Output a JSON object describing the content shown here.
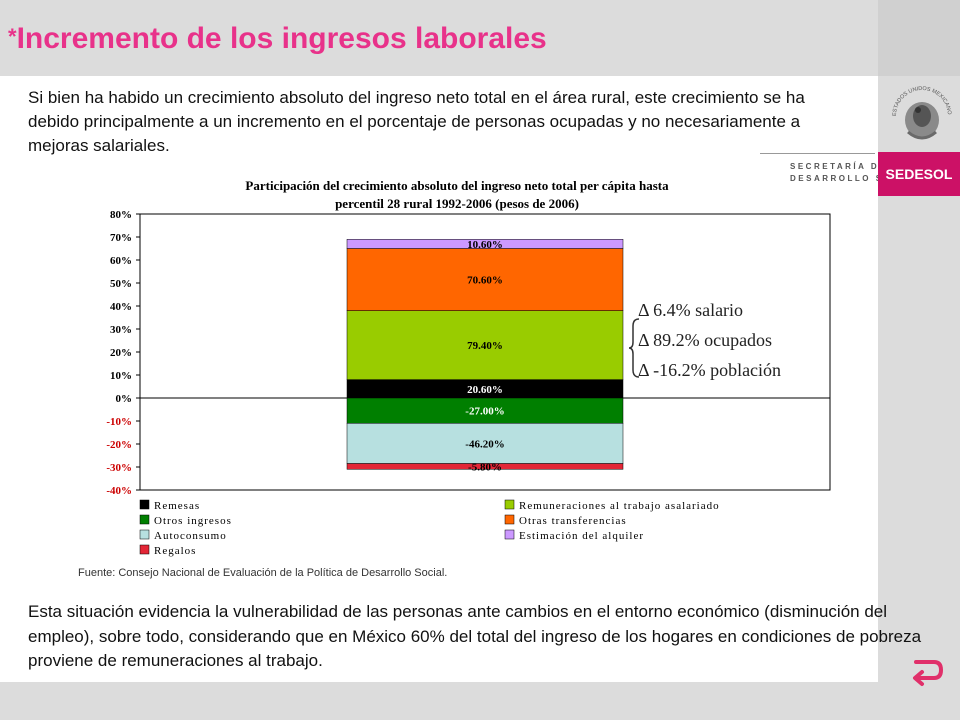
{
  "page": {
    "title_mark": "*",
    "title": "Incremento de los ingresos laborales",
    "intro": "Si bien ha habido un crecimiento absoluto del ingreso neto total en el área rural, este crecimiento se ha debido principalmente a un incremento en el porcentaje de personas ocupadas y no necesariamente a mejoras salariales.",
    "source": "Fuente: Consejo Nacional de Evaluación de la Política de Desarrollo Social.",
    "conclusion": "Esta situación evidencia la vulnerabilidad de las personas ante cambios en el entorno económico (disminución del empleo), sobre todo, considerando que en México 60% del total del ingreso de los hogares en condiciones de pobreza proviene de remuneraciones al trabajo."
  },
  "logo": {
    "secretaria_line1": "SECRETARÍA DE",
    "secretaria_line2": "DESARROLLO SOCIAL",
    "brand": "SEDESOL",
    "brand_color": "#cc1166",
    "emblem_text": "ESTADOS UNIDOS MEXICANOS"
  },
  "deltas": [
    "Δ 6.4% salario",
    "Δ 89.2% ocupados",
    "Δ -16.2% población"
  ],
  "colors": {
    "title": "#e8328a",
    "negative_tick": "#cc0000",
    "return_icon": "#e0306a"
  },
  "chart_data": {
    "type": "bar",
    "stacked": true,
    "title_line1": "Participación del crecimiento absoluto del ingreso neto total per cápita hasta",
    "title_line2": "percentil 28 rural 1992-2006 (pesos de 2006)",
    "ylim": [
      -40,
      80
    ],
    "yticks": [
      "80%",
      "70%",
      "60%",
      "50%",
      "40%",
      "30%",
      "20%",
      "10%",
      "0%",
      "-10%",
      "-20%",
      "-30%",
      "-40%"
    ],
    "segments": [
      {
        "name": "Remesas",
        "label": "20.60%",
        "value": 20.6,
        "height_pct": 8,
        "color": "#000000",
        "label_color": "#ffffff"
      },
      {
        "name": "Remuneraciones al trabajo asalariado",
        "label": "79.40%",
        "value": 79.4,
        "height_pct": 30,
        "color": "#99cc00",
        "label_color": "#000000"
      },
      {
        "name": "Otras transferencias",
        "label": "70.60%",
        "value": 70.6,
        "height_pct": 27,
        "color": "#ff6600",
        "label_color": "#000000"
      },
      {
        "name": "Estimación del alquiler",
        "label": "10.60%",
        "value": 10.6,
        "height_pct": 4,
        "color": "#cc99ff",
        "label_color": "#000000"
      },
      {
        "name": "Otros ingresos",
        "label": "-27.00%",
        "value": -27.0,
        "height_pct": -11,
        "color": "#007f00",
        "label_color": "#ffffff"
      },
      {
        "name": "Autoconsumo",
        "label": "-46.20%",
        "value": -46.2,
        "height_pct": -17.5,
        "color": "#b7e0e0",
        "label_color": "#000000"
      },
      {
        "name": "Regalos",
        "label": "-5.80%",
        "value": -5.8,
        "height_pct": -2.5,
        "color": "#e32636",
        "label_color": "#000000"
      }
    ],
    "legend": [
      {
        "name": "Remesas",
        "color": "#000000"
      },
      {
        "name": "Remuneraciones al trabajo asalariado",
        "color": "#99cc00"
      },
      {
        "name": "Otros ingresos",
        "color": "#007f00"
      },
      {
        "name": "Otras transferencias",
        "color": "#ff6600"
      },
      {
        "name": "Autoconsumo",
        "color": "#b7e0e0"
      },
      {
        "name": "Estimación del alquiler",
        "color": "#cc99ff"
      },
      {
        "name": "Regalos",
        "color": "#e32636"
      }
    ],
    "legend_placement": "bottom"
  }
}
